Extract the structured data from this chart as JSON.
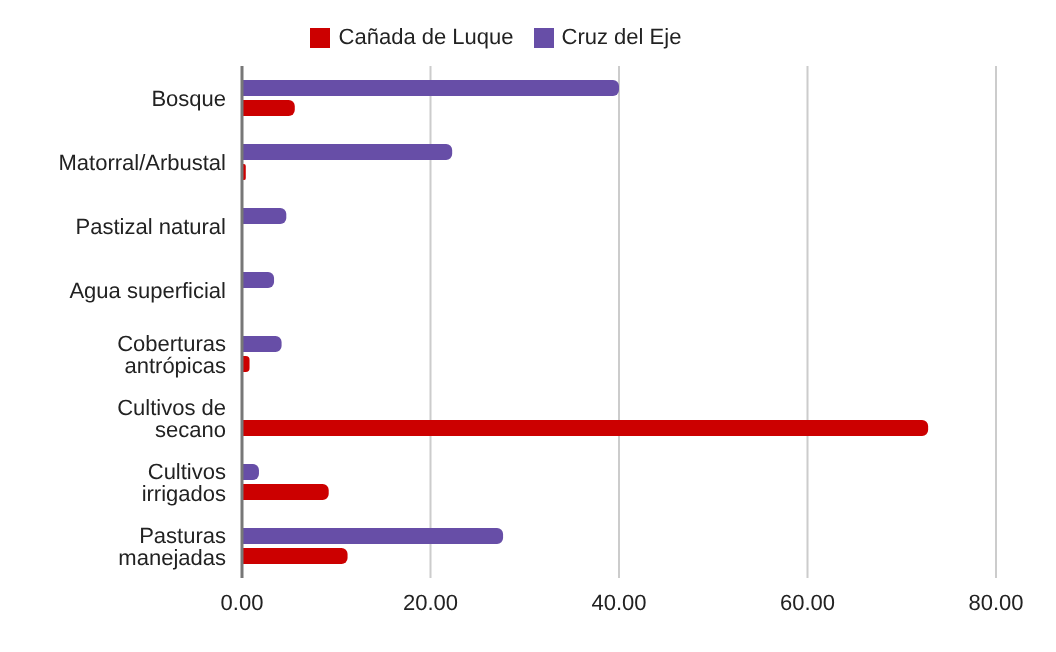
{
  "chart_data": {
    "type": "bar",
    "orientation": "horizontal",
    "categories": [
      "Bosque",
      "Matorral/Arbustal",
      "Pastizal natural",
      "Agua superficial",
      "Coberturas antrópicas",
      "Cultivos de secano",
      "Cultivos irrigados",
      "Pasturas manejadas"
    ],
    "series": [
      {
        "name": "Cruz del Eje",
        "color": "#674ea7",
        "values": [
          40.0,
          22.3,
          4.7,
          3.4,
          4.2,
          0,
          1.8,
          27.7
        ]
      },
      {
        "name": "Cañada de Luque",
        "color": "#cc0000",
        "values": [
          5.6,
          0.4,
          0,
          0,
          0.8,
          72.8,
          9.2,
          11.2
        ]
      }
    ],
    "xlim": [
      0,
      80
    ],
    "xticks": [
      {
        "value": 0,
        "label": "0.00"
      },
      {
        "value": 20,
        "label": "20.00"
      },
      {
        "value": 40,
        "label": "40.00"
      },
      {
        "value": 60,
        "label": "60.00"
      },
      {
        "value": 80,
        "label": "80.00"
      }
    ],
    "grid": "x",
    "legend": "top"
  }
}
